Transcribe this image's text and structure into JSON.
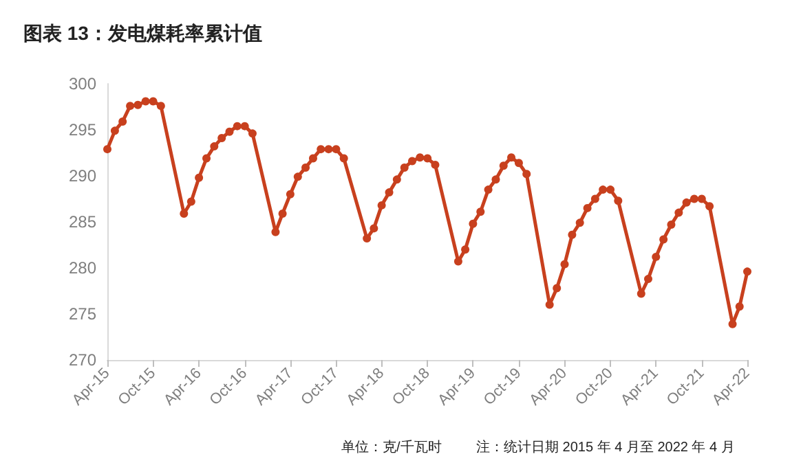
{
  "chart_data": {
    "type": "line",
    "title": "图表 13：发电煤耗率累计值",
    "annotations": [
      "单位：克/千瓦时",
      "注：统计日期 2015 年 4 月至 2022 年 4 月"
    ],
    "x": [
      "2015-04",
      "2015-05",
      "2015-06",
      "2015-07",
      "2015-08",
      "2015-09",
      "2015-10",
      "2015-11",
      "2016-02",
      "2016-03",
      "2016-04",
      "2016-05",
      "2016-06",
      "2016-07",
      "2016-08",
      "2016-09",
      "2016-10",
      "2016-11",
      "2017-02",
      "2017-03",
      "2017-04",
      "2017-05",
      "2017-06",
      "2017-07",
      "2017-08",
      "2017-09",
      "2017-10",
      "2017-11",
      "2018-02",
      "2018-03",
      "2018-04",
      "2018-05",
      "2018-06",
      "2018-07",
      "2018-08",
      "2018-09",
      "2018-10",
      "2018-11",
      "2019-02",
      "2019-03",
      "2019-04",
      "2019-05",
      "2019-06",
      "2019-07",
      "2019-08",
      "2019-09",
      "2019-10",
      "2019-11",
      "2020-02",
      "2020-03",
      "2020-04",
      "2020-05",
      "2020-06",
      "2020-07",
      "2020-08",
      "2020-09",
      "2020-10",
      "2020-11",
      "2021-02",
      "2021-03",
      "2021-04",
      "2021-05",
      "2021-06",
      "2021-07",
      "2021-08",
      "2021-09",
      "2021-10",
      "2021-11",
      "2022-02",
      "2022-03",
      "2022-04"
    ],
    "series": [
      {
        "color": "#c8401e",
        "values": [
          292.9,
          294.9,
          295.9,
          297.6,
          297.7,
          298.1,
          298.1,
          297.6,
          285.9,
          287.2,
          289.8,
          291.9,
          293.2,
          294.1,
          294.8,
          295.4,
          295.4,
          294.6,
          283.9,
          285.9,
          288.0,
          289.9,
          290.9,
          291.9,
          292.9,
          292.9,
          292.9,
          291.9,
          283.2,
          284.3,
          286.8,
          288.2,
          289.6,
          290.9,
          291.6,
          292.0,
          291.9,
          291.2,
          280.7,
          282.0,
          284.8,
          286.1,
          288.5,
          289.6,
          291.1,
          292.0,
          291.4,
          290.2,
          276.0,
          277.8,
          280.4,
          283.6,
          284.9,
          286.5,
          287.5,
          288.5,
          288.5,
          287.3,
          277.2,
          278.8,
          281.2,
          283.1,
          284.7,
          286.0,
          287.1,
          287.5,
          287.5,
          286.7,
          273.9,
          275.8,
          279.6
        ]
      }
    ],
    "xlim": [
      "2015-04",
      "2022-04"
    ],
    "xticks": [
      {
        "value": "2015-04",
        "label": "Apr-15"
      },
      {
        "value": "2015-10",
        "label": "Oct-15"
      },
      {
        "value": "2016-04",
        "label": "Apr-16"
      },
      {
        "value": "2016-10",
        "label": "Oct-16"
      },
      {
        "value": "2017-04",
        "label": "Apr-17"
      },
      {
        "value": "2017-10",
        "label": "Oct-17"
      },
      {
        "value": "2018-04",
        "label": "Apr-18"
      },
      {
        "value": "2018-10",
        "label": "Oct-18"
      },
      {
        "value": "2019-04",
        "label": "Apr-19"
      },
      {
        "value": "2019-10",
        "label": "Oct-19"
      },
      {
        "value": "2020-04",
        "label": "Apr-20"
      },
      {
        "value": "2020-10",
        "label": "Oct-20"
      },
      {
        "value": "2021-04",
        "label": "Apr-21"
      },
      {
        "value": "2021-10",
        "label": "Oct-21"
      },
      {
        "value": "2022-04",
        "label": "Apr-22"
      }
    ],
    "ylim": [
      270,
      300
    ],
    "yticks": [
      270,
      275,
      280,
      285,
      290,
      295,
      300
    ],
    "grid": false,
    "marker": "circle",
    "line_style": "solid"
  }
}
